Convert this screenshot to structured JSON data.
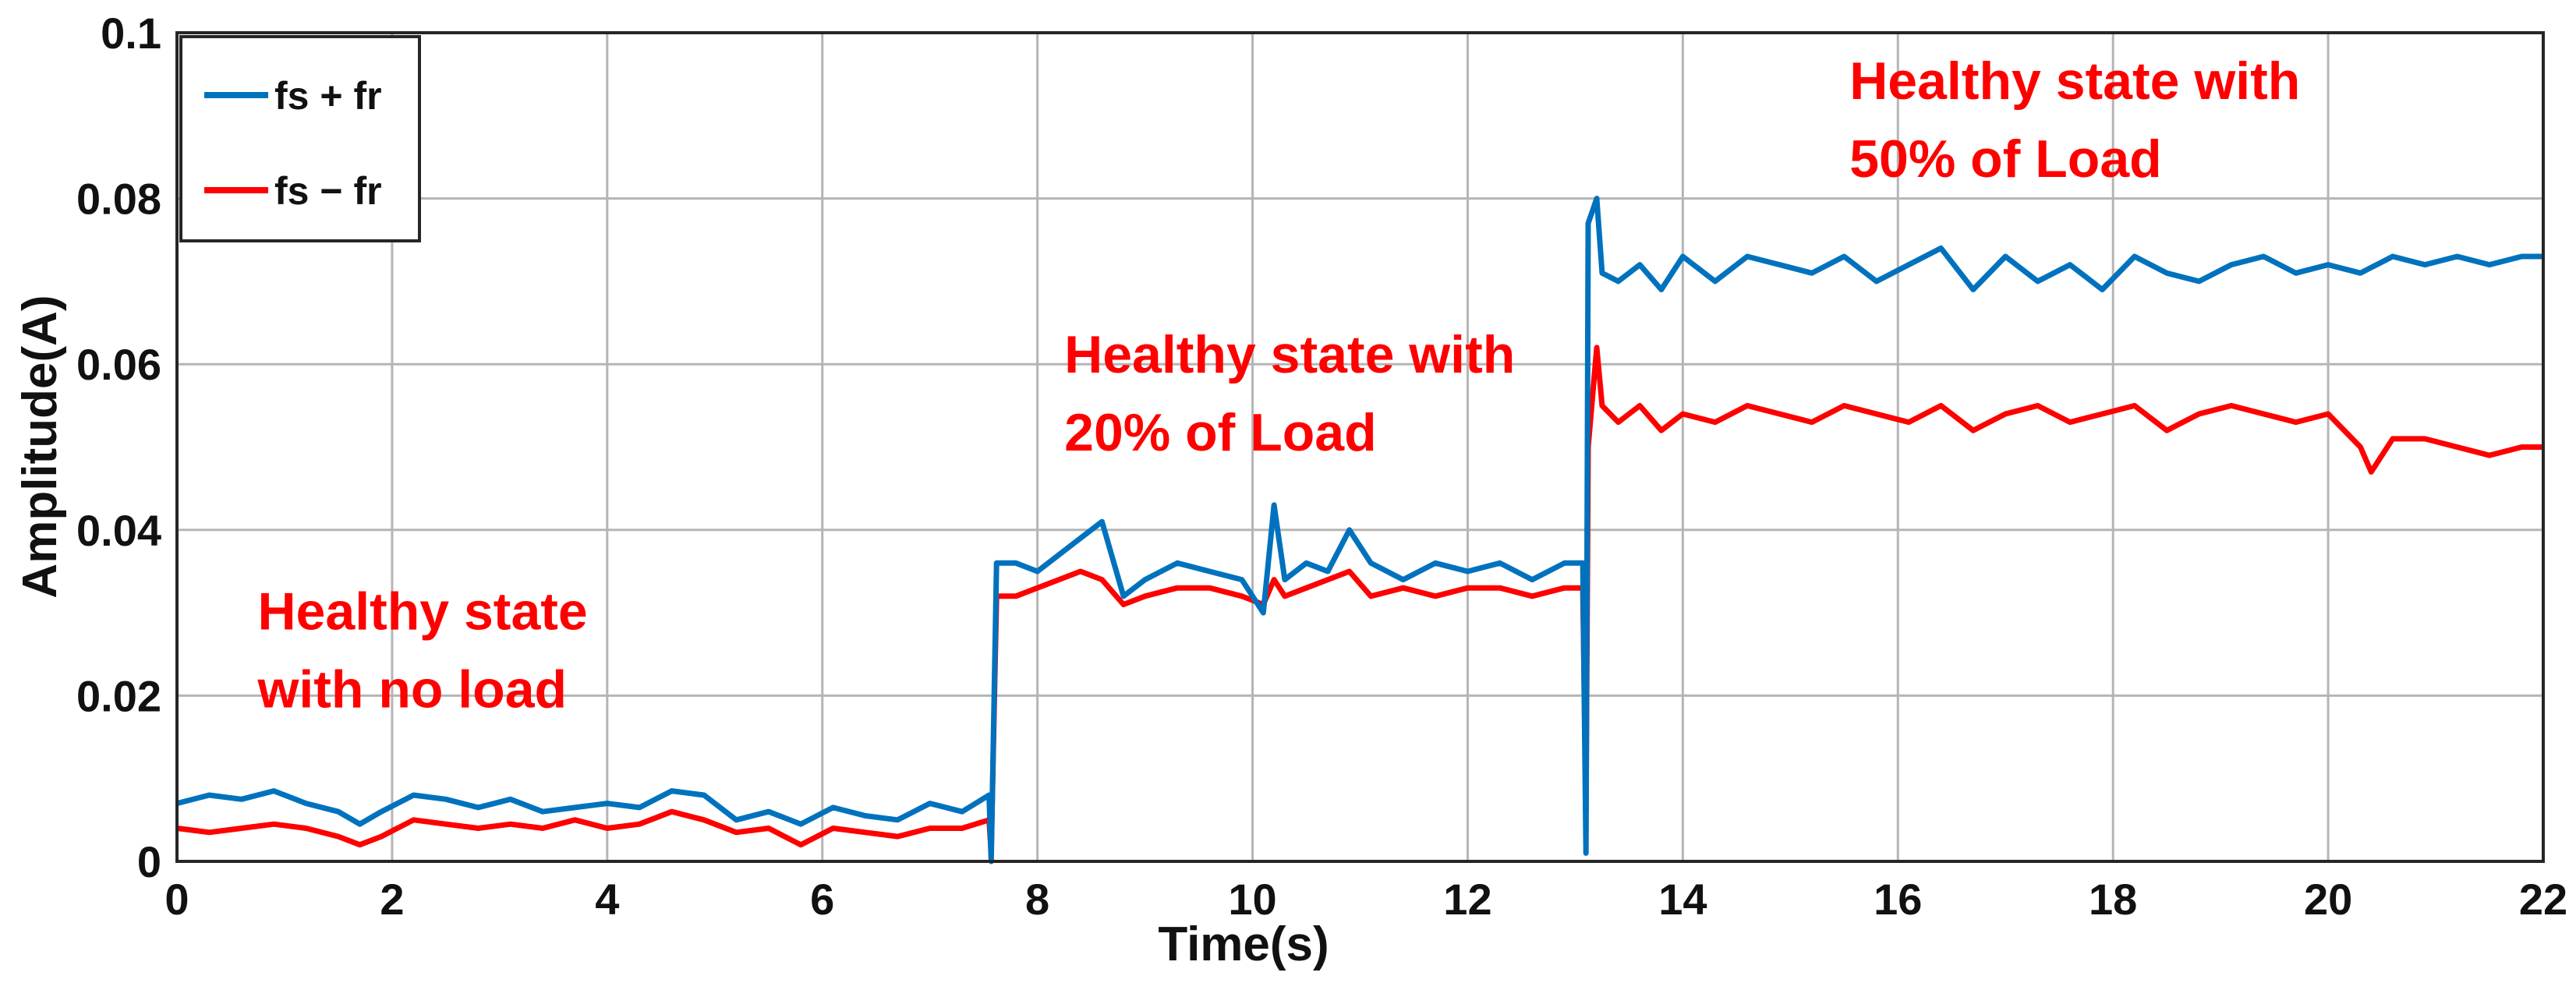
{
  "chart_data": {
    "type": "line",
    "title": "",
    "xlabel": "Time(s)",
    "ylabel": "Amplitude(A)",
    "xlim": [
      0,
      22
    ],
    "ylim": [
      0,
      0.1
    ],
    "xticks": [
      0,
      2,
      4,
      6,
      8,
      10,
      12,
      14,
      16,
      18,
      20,
      22
    ],
    "xtick_labels": [
      "0",
      "2",
      "4",
      "6",
      "8",
      "10",
      "12",
      "14",
      "16",
      "18",
      "20",
      "22"
    ],
    "yticks": [
      0,
      0.02,
      0.04,
      0.06,
      0.08,
      0.1
    ],
    "ytick_labels": [
      "0",
      "0.02",
      "0.04",
      "0.06",
      "0.08",
      "0.1"
    ],
    "grid": true,
    "legend_position": "top-left",
    "series": [
      {
        "name": "fs + fr",
        "color": "#0072BD",
        "x": [
          0,
          0.3,
          0.6,
          0.9,
          1.2,
          1.5,
          1.7,
          1.9,
          2.2,
          2.5,
          2.8,
          3.1,
          3.4,
          3.7,
          4.0,
          4.3,
          4.6,
          4.9,
          5.2,
          5.5,
          5.8,
          6.1,
          6.4,
          6.7,
          7.0,
          7.3,
          7.55,
          7.57,
          7.62,
          7.8,
          8.0,
          8.2,
          8.4,
          8.6,
          8.8,
          9.0,
          9.3,
          9.6,
          9.9,
          10.1,
          10.2,
          10.3,
          10.5,
          10.7,
          10.9,
          11.1,
          11.4,
          11.7,
          12.0,
          12.3,
          12.6,
          12.9,
          13.07,
          13.1,
          13.12,
          13.2,
          13.25,
          13.4,
          13.6,
          13.8,
          14.0,
          14.3,
          14.6,
          14.9,
          15.2,
          15.5,
          15.8,
          16.1,
          16.4,
          16.7,
          17.0,
          17.3,
          17.6,
          17.9,
          18.2,
          18.5,
          18.8,
          19.1,
          19.4,
          19.7,
          20.0,
          20.3,
          20.6,
          20.9,
          21.2,
          21.5,
          21.8,
          22.0
        ],
        "y": [
          0.007,
          0.008,
          0.0075,
          0.0085,
          0.007,
          0.006,
          0.0045,
          0.006,
          0.008,
          0.0075,
          0.0065,
          0.0075,
          0.006,
          0.0065,
          0.007,
          0.0065,
          0.0085,
          0.008,
          0.005,
          0.006,
          0.0045,
          0.0065,
          0.0055,
          0.005,
          0.007,
          0.006,
          0.008,
          0.0,
          0.036,
          0.036,
          0.035,
          0.037,
          0.039,
          0.041,
          0.032,
          0.034,
          0.036,
          0.035,
          0.034,
          0.03,
          0.043,
          0.034,
          0.036,
          0.035,
          0.04,
          0.036,
          0.034,
          0.036,
          0.035,
          0.036,
          0.034,
          0.036,
          0.036,
          0.001,
          0.077,
          0.08,
          0.071,
          0.07,
          0.072,
          0.069,
          0.073,
          0.07,
          0.073,
          0.072,
          0.071,
          0.073,
          0.07,
          0.072,
          0.074,
          0.069,
          0.073,
          0.07,
          0.072,
          0.069,
          0.073,
          0.071,
          0.07,
          0.072,
          0.073,
          0.071,
          0.072,
          0.071,
          0.073,
          0.072,
          0.073,
          0.072,
          0.073,
          0.073
        ]
      },
      {
        "name": "fs − fr",
        "color": "#FF0000",
        "x": [
          0,
          0.3,
          0.6,
          0.9,
          1.2,
          1.5,
          1.7,
          1.9,
          2.2,
          2.5,
          2.8,
          3.1,
          3.4,
          3.7,
          4.0,
          4.3,
          4.6,
          4.9,
          5.2,
          5.5,
          5.8,
          6.1,
          6.4,
          6.7,
          7.0,
          7.3,
          7.55,
          7.57,
          7.62,
          7.8,
          8.0,
          8.2,
          8.4,
          8.6,
          8.8,
          9.0,
          9.3,
          9.6,
          9.9,
          10.1,
          10.2,
          10.3,
          10.5,
          10.7,
          10.9,
          11.1,
          11.4,
          11.7,
          12.0,
          12.3,
          12.6,
          12.9,
          13.07,
          13.1,
          13.12,
          13.2,
          13.25,
          13.4,
          13.6,
          13.8,
          14.0,
          14.3,
          14.6,
          14.9,
          15.2,
          15.5,
          15.8,
          16.1,
          16.4,
          16.7,
          17.0,
          17.3,
          17.6,
          17.9,
          18.2,
          18.5,
          18.8,
          19.1,
          19.4,
          19.7,
          20.0,
          20.3,
          20.4,
          20.6,
          20.9,
          21.2,
          21.5,
          21.8,
          22.0
        ],
        "y": [
          0.004,
          0.0035,
          0.004,
          0.0045,
          0.004,
          0.003,
          0.002,
          0.003,
          0.005,
          0.0045,
          0.004,
          0.0045,
          0.004,
          0.005,
          0.004,
          0.0045,
          0.006,
          0.005,
          0.0035,
          0.004,
          0.002,
          0.004,
          0.0035,
          0.003,
          0.004,
          0.004,
          0.005,
          0.001,
          0.032,
          0.032,
          0.033,
          0.034,
          0.035,
          0.034,
          0.031,
          0.032,
          0.033,
          0.033,
          0.032,
          0.031,
          0.034,
          0.032,
          0.033,
          0.034,
          0.035,
          0.032,
          0.033,
          0.032,
          0.033,
          0.033,
          0.032,
          0.033,
          0.033,
          0.006,
          0.05,
          0.062,
          0.055,
          0.053,
          0.055,
          0.052,
          0.054,
          0.053,
          0.055,
          0.054,
          0.053,
          0.055,
          0.054,
          0.053,
          0.055,
          0.052,
          0.054,
          0.055,
          0.053,
          0.054,
          0.055,
          0.052,
          0.054,
          0.055,
          0.054,
          0.053,
          0.054,
          0.05,
          0.047,
          0.051,
          0.051,
          0.05,
          0.049,
          0.05,
          0.05
        ]
      }
    ],
    "annotations": [
      {
        "lines": [
          "Healthy state",
          "with no load"
        ],
        "x": 0.75,
        "y": 0.028,
        "color": "#FF0000"
      },
      {
        "lines": [
          "Healthy state with",
          "20% of Load"
        ],
        "x": 8.25,
        "y": 0.059,
        "color": "#FF0000"
      },
      {
        "lines": [
          "Healthy state with",
          "50% of Load"
        ],
        "x": 15.55,
        "y": 0.092,
        "color": "#FF0000"
      }
    ]
  }
}
